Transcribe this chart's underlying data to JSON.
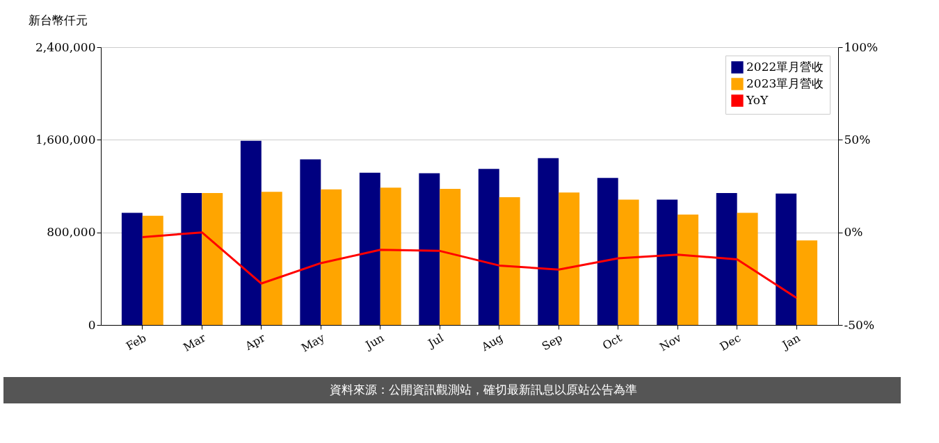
{
  "chart_data": {
    "type": "bar",
    "ylabel": "新台幣仟元",
    "categories": [
      "Feb",
      "Mar",
      "Apr",
      "May",
      "Jun",
      "Jul",
      "Aug",
      "Sep",
      "Oct",
      "Nov",
      "Dec",
      "Jan"
    ],
    "series": [
      {
        "name": "2022單月營收",
        "color": "#000080",
        "values": [
          969000,
          1140000,
          1591000,
          1431000,
          1316000,
          1311000,
          1348000,
          1441000,
          1270000,
          1083000,
          1140000,
          1135000
        ]
      },
      {
        "name": "2023單月營收",
        "color": "#ffa500",
        "values": [
          943000,
          1140000,
          1151000,
          1171000,
          1187000,
          1176000,
          1104000,
          1145000,
          1083000,
          954000,
          969000,
          731000
        ]
      },
      {
        "name": "YoY",
        "type": "line",
        "axis": "y2",
        "color": "#ff0000",
        "values": [
          -2.6,
          0,
          -27.6,
          -16.6,
          -9.4,
          -10,
          -17.9,
          -20.1,
          -14,
          -12,
          -14.6,
          -35.4
        ]
      }
    ],
    "ylim": [
      0,
      2400000
    ],
    "yticks": [
      {
        "value": 0,
        "label": "0"
      },
      {
        "value": 800000,
        "label": "800,000"
      },
      {
        "value": 1600000,
        "label": "1,600,000"
      },
      {
        "value": 2400000,
        "label": "2,400,000"
      }
    ],
    "y2lim": [
      -50,
      100
    ],
    "y2ticks": [
      {
        "value": -50,
        "label": "-50%"
      },
      {
        "value": 0,
        "label": "0%"
      },
      {
        "value": 50,
        "label": "50%"
      },
      {
        "value": 100,
        "label": "100%"
      }
    ],
    "grid": "y",
    "legend": "top right",
    "annotations": [
      "資料來源：公開資訊觀測站，確切最新訊息以原站公告為準"
    ]
  }
}
